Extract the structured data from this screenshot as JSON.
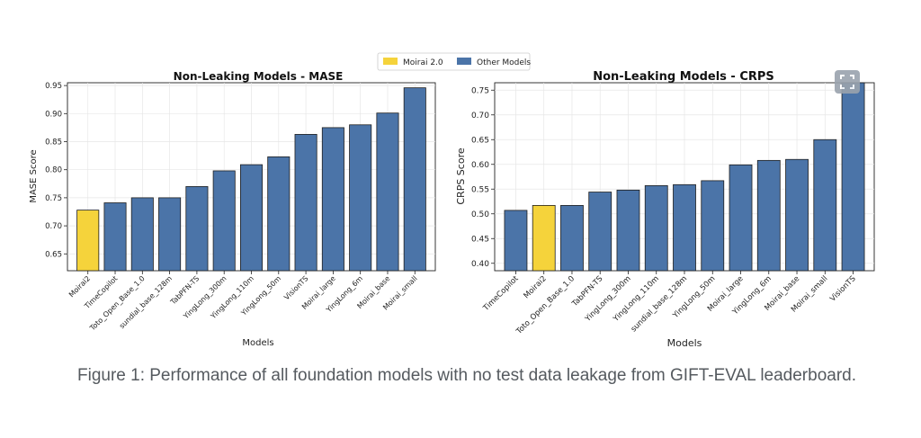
{
  "legend": {
    "items": [
      {
        "label": "Moirai 2.0",
        "color": "#f5d33b"
      },
      {
        "label": "Other Models",
        "color": "#4b74a8"
      }
    ]
  },
  "colors": {
    "highlight": "#f5d33b",
    "other": "#4b74a8",
    "bar_edge": "#1f1f1f",
    "grid": "#e6e6e6"
  },
  "chart_data": [
    {
      "type": "bar",
      "title": "Non-Leaking Models - MASE",
      "xlabel": "Models",
      "ylabel": "MASE Score",
      "ylim": [
        0.62,
        0.955
      ],
      "yticks": [
        0.65,
        0.7,
        0.75,
        0.8,
        0.85,
        0.9,
        0.95
      ],
      "ytick_labels": [
        "0.65",
        "0.70",
        "0.75",
        "0.80",
        "0.85",
        "0.90",
        "0.95"
      ],
      "grid": true,
      "highlight": "Moirai2",
      "categories": [
        "Moirai2",
        "TimeCopilot",
        "Toto_Open_Base_1.0",
        "sundial_base_128m",
        "TabPFN-TS",
        "YingLong_300m",
        "YingLong_110m",
        "YingLong_50m",
        "VisionTS",
        "Moirai_large",
        "YingLong_6m",
        "Moirai_base",
        "Moirai_small"
      ],
      "values": [
        0.728,
        0.741,
        0.75,
        0.75,
        0.77,
        0.798,
        0.809,
        0.823,
        0.863,
        0.875,
        0.88,
        0.901,
        0.946
      ]
    },
    {
      "type": "bar",
      "title": "Non-Leaking Models - CRPS",
      "xlabel": "Models",
      "ylabel": "CRPS Score",
      "ylim": [
        0.385,
        0.765
      ],
      "yticks": [
        0.4,
        0.45,
        0.5,
        0.55,
        0.6,
        0.65,
        0.7,
        0.75
      ],
      "ytick_labels": [
        "0.40",
        "0.45",
        "0.50",
        "0.55",
        "0.60",
        "0.65",
        "0.70",
        "0.75"
      ],
      "grid": true,
      "highlight": "Moirai2",
      "categories": [
        "TimeCopilot",
        "Moirai2",
        "Toto_Open_Base_1.0",
        "TabPFN-TS",
        "YingLong_300m",
        "YingLong_110m",
        "sundial_base_128m",
        "YingLong_50m",
        "Moirai_large",
        "YingLong_6m",
        "Moirai_base",
        "Moirai_small",
        "VisionTS"
      ],
      "values": [
        0.507,
        0.517,
        0.517,
        0.544,
        0.548,
        0.557,
        0.559,
        0.567,
        0.599,
        0.608,
        0.61,
        0.65,
        0.765
      ]
    }
  ],
  "caption": "Figure 1: Performance of all foundation models with no test data leakage from GIFT-EVAL leaderboard."
}
